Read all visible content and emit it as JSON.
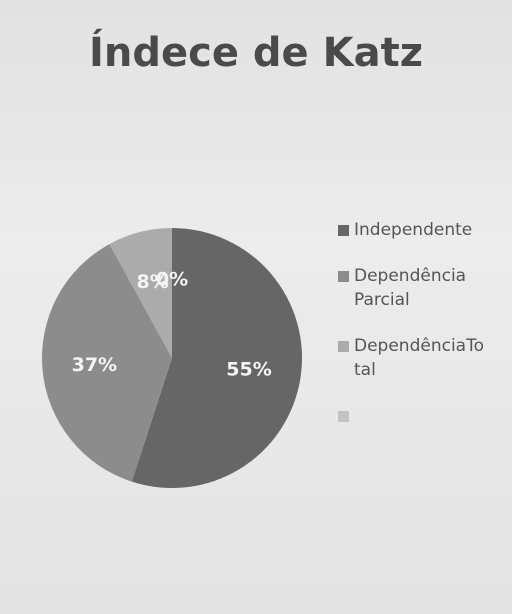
{
  "chart_data": {
    "type": "pie",
    "title": "Índece de Katz",
    "categories": [
      "Independente",
      "Dependência Parcial",
      "DependênciaTotal",
      null
    ],
    "values": [
      55,
      37,
      8,
      0
    ],
    "value_labels": [
      "55%",
      "37%",
      "8%",
      "0%"
    ],
    "colors": [
      "#666666",
      "#8c8c8c",
      "#ababab",
      "#c4c4c4"
    ],
    "legend": "right"
  }
}
